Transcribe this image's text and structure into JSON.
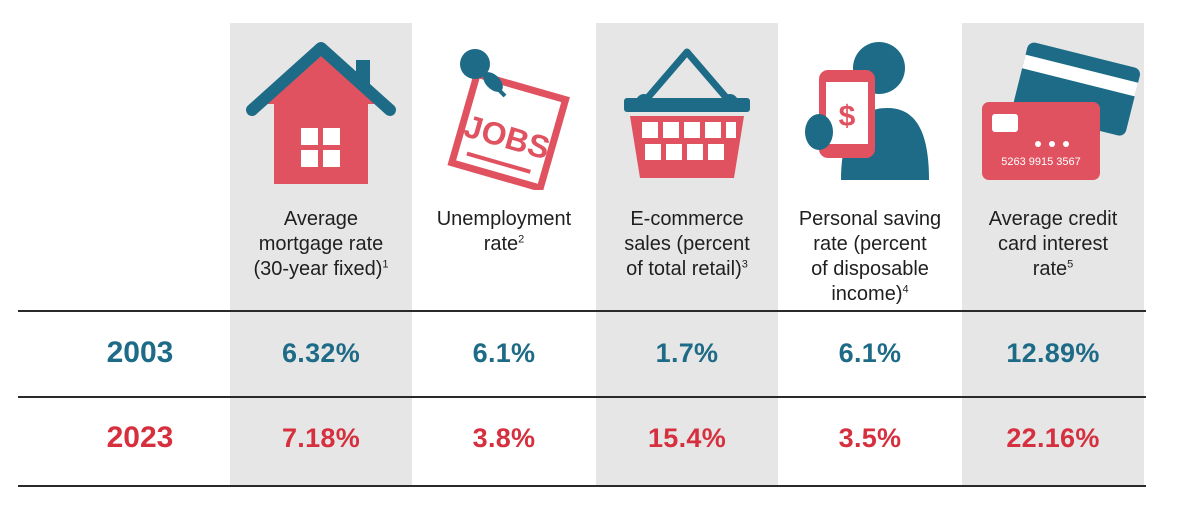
{
  "chart_data": {
    "type": "table",
    "columns": [
      {
        "label_lines": [
          "Average",
          "mortgage rate",
          "(30-year fixed)"
        ],
        "footnote": "1",
        "icon": "house-icon",
        "values": [
          "6.32%",
          "7.18%"
        ]
      },
      {
        "label_lines": [
          "Unemployment",
          "rate"
        ],
        "footnote": "2",
        "icon": "jobs-note-icon",
        "values": [
          "6.1%",
          "3.8%"
        ]
      },
      {
        "label_lines": [
          "E-commerce",
          "sales (percent",
          "of total retail)"
        ],
        "footnote": "3",
        "icon": "shopping-basket-icon",
        "values": [
          "1.7%",
          "15.4%"
        ]
      },
      {
        "label_lines": [
          "Personal saving",
          "rate (percent",
          "of disposable",
          "income)"
        ],
        "footnote": "4",
        "icon": "phone-dollar-icon",
        "values": [
          "6.1%",
          "3.5%"
        ]
      },
      {
        "label_lines": [
          "Average credit",
          "card interest",
          "rate"
        ],
        "footnote": "5",
        "icon": "credit-cards-icon",
        "values": [
          "12.89%",
          "22.16%"
        ]
      }
    ],
    "rows": [
      "2003",
      "2023"
    ],
    "card_number": "5263 9915 3567"
  },
  "colors": {
    "year_2003": "#1d6b86",
    "year_2023": "#d6303f",
    "shade": "#e6e6e6",
    "icon_teal": "#1d6b86",
    "icon_red": "#e05260"
  }
}
